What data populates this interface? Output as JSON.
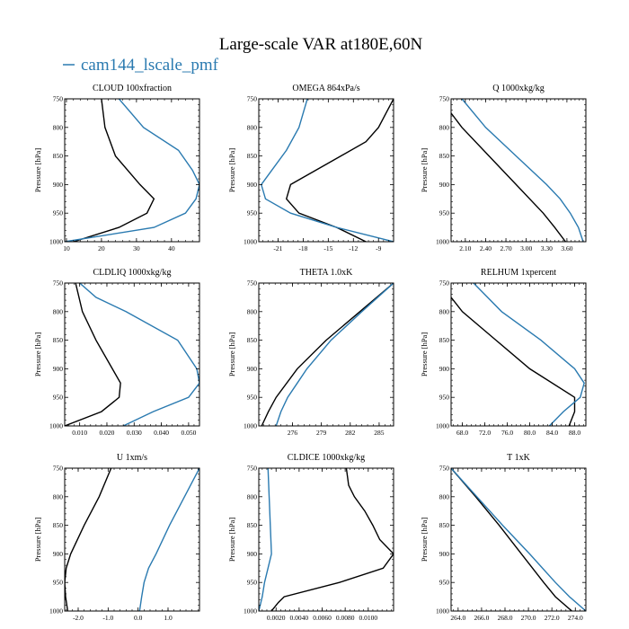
{
  "figure": {
    "title": "Large-scale VAR at180E,60N",
    "legend": {
      "label": "cam144_lscale_pmf",
      "color": "#2a7ab0"
    },
    "series_colors": [
      "#000000",
      "#2a7ab0"
    ]
  },
  "chart_data": [
    {
      "type": "line",
      "title": "CLOUD  100xfraction",
      "ylabel": "Pressure [hPa]",
      "ylim": [
        1000,
        750
      ],
      "yticks": [
        750,
        800,
        850,
        900,
        950,
        1000
      ],
      "xlim": [
        9.5,
        48
      ],
      "xticks": [
        10,
        20,
        30,
        40
      ],
      "xtick_labels": [
        "10",
        "20",
        "30",
        "40"
      ],
      "series": [
        {
          "y": [
            750,
            800,
            850,
            900,
            925,
            950,
            975,
            1000
          ],
          "x": [
            20,
            21,
            24,
            31,
            35,
            33,
            25,
            12
          ]
        },
        {
          "name": "cam144_lscale_pmf",
          "y": [
            750,
            800,
            840,
            875,
            900,
            925,
            950,
            975,
            1000
          ],
          "x": [
            25,
            32,
            42,
            46,
            48,
            47,
            44,
            35,
            9.5
          ]
        }
      ]
    },
    {
      "type": "line",
      "title": "OMEGA  864xPa/s",
      "ylabel": "Pressure [hPa]",
      "ylim": [
        1000,
        750
      ],
      "yticks": [
        750,
        800,
        850,
        900,
        950,
        1000
      ],
      "xlim": [
        -23.3,
        -7.2
      ],
      "xticks": [
        -21,
        -18,
        -15,
        -12,
        -9
      ],
      "xtick_labels": [
        "-21",
        "-18",
        "-15",
        "-12",
        "-9"
      ],
      "series": [
        {
          "y": [
            750,
            800,
            825,
            850,
            875,
            900,
            925,
            950,
            975,
            1000
          ],
          "x": [
            -7.2,
            -9,
            -10.5,
            -13.5,
            -16.5,
            -19.5,
            -20,
            -18.5,
            -14,
            -10.5
          ]
        },
        {
          "y": [
            750,
            800,
            840,
            880,
            900,
            925,
            950,
            975,
            1000
          ],
          "x": [
            -17.5,
            -18.5,
            -20,
            -22,
            -23,
            -22.5,
            -19.5,
            -14,
            -7.2
          ]
        }
      ]
    },
    {
      "type": "line",
      "title": "Q  1000xkg/kg",
      "ylabel": "Pressure [hPa]",
      "ylim": [
        1000,
        750
      ],
      "yticks": [
        750,
        800,
        850,
        900,
        950,
        1000
      ],
      "xlim": [
        1.89,
        3.88
      ],
      "xticks": [
        2.1,
        2.4,
        2.7,
        3.0,
        3.3,
        3.6
      ],
      "xtick_labels": [
        "2.10",
        "2.40",
        "2.70",
        "3.00",
        "3.30",
        "3.60"
      ],
      "series": [
        {
          "y": [
            775,
            800,
            850,
            900,
            950,
            975,
            1000
          ],
          "x": [
            1.89,
            2.05,
            2.45,
            2.85,
            3.25,
            3.42,
            3.58
          ]
        },
        {
          "y": [
            750,
            800,
            850,
            900,
            925,
            950,
            975,
            1000
          ],
          "x": [
            2.05,
            2.4,
            2.85,
            3.3,
            3.5,
            3.65,
            3.77,
            3.84
          ]
        }
      ]
    },
    {
      "type": "line",
      "title": "CLDLIQ  1000xkg/kg",
      "ylabel": "Pressure [hPa]",
      "ylim": [
        1000,
        750
      ],
      "yticks": [
        750,
        800,
        850,
        900,
        950,
        1000
      ],
      "xlim": [
        0.0045,
        0.054
      ],
      "xticks": [
        0.01,
        0.02,
        0.03,
        0.04,
        0.05
      ],
      "xtick_labels": [
        "0.010",
        "0.020",
        "0.030",
        "0.040",
        "0.050"
      ],
      "series": [
        {
          "y": [
            750,
            800,
            850,
            900,
            925,
            950,
            975,
            1000
          ],
          "x": [
            0.0085,
            0.011,
            0.016,
            0.022,
            0.025,
            0.0245,
            0.018,
            0.0045
          ]
        },
        {
          "y": [
            750,
            775,
            800,
            850,
            900,
            925,
            950,
            975,
            1000
          ],
          "x": [
            0.01,
            0.016,
            0.027,
            0.046,
            0.053,
            0.054,
            0.05,
            0.037,
            0.026
          ]
        }
      ]
    },
    {
      "type": "line",
      "title": "THETA  1.0xK",
      "ylabel": "Pressure [hPa]",
      "ylim": [
        1000,
        750
      ],
      "yticks": [
        750,
        800,
        850,
        900,
        950,
        1000
      ],
      "xlim": [
        272.5,
        286.5
      ],
      "xticks": [
        276,
        279,
        282,
        285
      ],
      "xtick_labels": [
        "276",
        "279",
        "282",
        "285"
      ],
      "series": [
        {
          "y": [
            750,
            800,
            850,
            900,
            950,
            975,
            1000
          ],
          "x": [
            286.5,
            283,
            279.5,
            276.5,
            274.3,
            273.5,
            272.8
          ]
        },
        {
          "y": [
            750,
            800,
            850,
            900,
            925,
            950,
            975,
            1000
          ],
          "x": [
            286.5,
            283.2,
            280,
            277.5,
            276.5,
            275.5,
            274.8,
            274.3
          ]
        }
      ]
    },
    {
      "type": "line",
      "title": "RELHUM  1xpercent",
      "ylabel": "Pressure [hPa]",
      "ylim": [
        1000,
        750
      ],
      "yticks": [
        750,
        800,
        850,
        900,
        950,
        1000
      ],
      "xlim": [
        66,
        90
      ],
      "xticks": [
        68,
        72,
        76,
        80,
        84,
        88
      ],
      "xtick_labels": [
        "68.0",
        "72.0",
        "76.0",
        "80.0",
        "84.0",
        "88.0"
      ],
      "series": [
        {
          "y": [
            775,
            800,
            850,
            900,
            950,
            975,
            1000
          ],
          "x": [
            66,
            68,
            74,
            80,
            88,
            88,
            87
          ]
        },
        {
          "y": [
            750,
            800,
            850,
            900,
            925,
            950,
            975,
            1000
          ],
          "x": [
            70,
            75,
            82,
            88,
            89.7,
            89,
            86,
            83.5
          ]
        }
      ]
    },
    {
      "type": "line",
      "title": "U  1xm/s",
      "ylabel": "Pressure [hPa]",
      "ylim": [
        1000,
        750
      ],
      "yticks": [
        750,
        800,
        850,
        900,
        950,
        1000
      ],
      "xlim": [
        -2.45,
        2.05
      ],
      "xticks": [
        -2,
        -1,
        0,
        1
      ],
      "xtick_labels": [
        "-2.0",
        "-1.0",
        "0.0",
        "1.0"
      ],
      "series": [
        {
          "y": [
            750,
            800,
            850,
            900,
            925,
            950,
            975,
            1000
          ],
          "x": [
            -0.9,
            -1.3,
            -1.8,
            -2.25,
            -2.4,
            -2.45,
            -2.42,
            -2.35
          ]
        },
        {
          "y": [
            750,
            800,
            850,
            900,
            925,
            950,
            975,
            1000
          ],
          "x": [
            2.05,
            1.55,
            1.05,
            0.6,
            0.35,
            0.2,
            0.12,
            0.05
          ]
        }
      ]
    },
    {
      "type": "line",
      "title": "CLDICE  1000xkg/kg",
      "ylabel": "Pressure [hPa]",
      "ylim": [
        1000,
        750
      ],
      "yticks": [
        750,
        800,
        850,
        900,
        950,
        1000
      ],
      "xlim": [
        0.0005,
        0.0122
      ],
      "xticks": [
        0.002,
        0.004,
        0.006,
        0.008,
        0.01
      ],
      "xtick_labels": [
        "0.0020",
        "0.0040",
        "0.0060",
        "0.0080",
        "0.0100"
      ],
      "series": [
        {
          "y": [
            750,
            780,
            800,
            825,
            850,
            875,
            900,
            925,
            950,
            975,
            985,
            1000
          ],
          "x": [
            0.0081,
            0.0083,
            0.0088,
            0.0097,
            0.0104,
            0.011,
            0.0122,
            0.0113,
            0.0075,
            0.0027,
            0.0022,
            0.0016
          ]
        },
        {
          "y": [
            750,
            800,
            850,
            900,
            925,
            950,
            975,
            1000
          ],
          "x": [
            0.0013,
            0.0014,
            0.0015,
            0.0016,
            0.0013,
            0.001,
            0.0008,
            0.0005
          ]
        }
      ]
    },
    {
      "type": "line",
      "title": "T  1xK",
      "ylabel": "Pressure [hPa]",
      "ylim": [
        1000,
        750
      ],
      "yticks": [
        750,
        800,
        850,
        900,
        950,
        1000
      ],
      "xlim": [
        263.4,
        274.9
      ],
      "xticks": [
        264,
        266,
        268,
        270,
        272,
        274
      ],
      "xtick_labels": [
        "264.0",
        "266.0",
        "268.0",
        "270.0",
        "272.0",
        "274.0"
      ],
      "series": [
        {
          "y": [
            750,
            800,
            850,
            900,
            950,
            975,
            1000
          ],
          "x": [
            263.4,
            265.5,
            267.5,
            269.4,
            271.3,
            272.3,
            273.7
          ]
        },
        {
          "y": [
            750,
            800,
            850,
            900,
            950,
            975,
            1000
          ],
          "x": [
            263.4,
            265.6,
            267.8,
            270.1,
            272.3,
            273.5,
            274.9
          ]
        }
      ]
    }
  ]
}
